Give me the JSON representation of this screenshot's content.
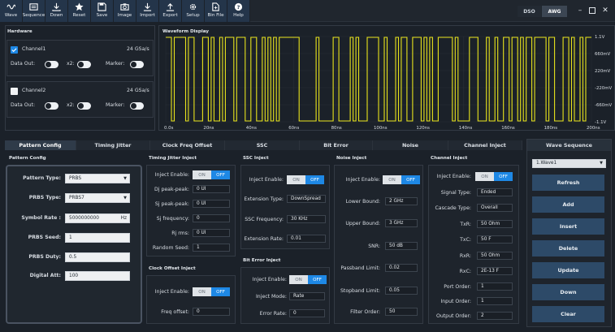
{
  "toolbar": {
    "buttons": [
      {
        "label": "Wave",
        "icon": "wave-icon"
      },
      {
        "label": "Sequence",
        "icon": "sequence-icon"
      },
      {
        "label": "Down",
        "icon": "download-icon"
      },
      {
        "label": "Reset",
        "icon": "star-icon"
      },
      {
        "label": "Save",
        "icon": "save-icon"
      },
      {
        "label": "Image",
        "icon": "camera-icon"
      },
      {
        "label": "Import",
        "icon": "import-icon"
      },
      {
        "label": "Export",
        "icon": "export-icon"
      },
      {
        "label": "Setup",
        "icon": "gear-icon"
      },
      {
        "label": "Bin File",
        "icon": "file-icon"
      },
      {
        "label": "Help",
        "icon": "help-icon"
      }
    ],
    "modes": {
      "dso": "DSO",
      "awg": "AWG"
    }
  },
  "hardware": {
    "title": "Hardware",
    "channel1": {
      "name": "Channel1",
      "rate": "24 GSa/s",
      "checked": true,
      "data_out": "Data Out:",
      "x2": "x2:",
      "marker": "Marker:"
    },
    "channel2": {
      "name": "Channel2",
      "rate": "24 GSa/s",
      "checked": false,
      "data_out": "Data Out:",
      "x2": "x2:",
      "marker": "Marker:"
    }
  },
  "waveform": {
    "title": "Waveform Display",
    "y_labels": [
      "1.1V",
      "660mV",
      "220mV",
      "-220mV",
      "-660mV",
      "-1.1V"
    ],
    "x_labels": [
      "0.0s",
      "20ns",
      "40ns",
      "60ns",
      "80ns",
      "100ns",
      "120ns",
      "140ns",
      "160ns",
      "180ns",
      "200ns"
    ],
    "color": "#e8e41c"
  },
  "tabs": [
    "Pattern Config",
    "Timing Jitter",
    "Clock Freq Offset",
    "SSC",
    "Bit Error",
    "Noise",
    "Channel Inject"
  ],
  "pattern_config": {
    "title": "Pattern Config",
    "pattern_type": {
      "label": "Pattern Type:",
      "value": "PRBS"
    },
    "prbs_type": {
      "label": "PRBS Type:",
      "value": "PRBS7"
    },
    "symbol_rate": {
      "label": "Symbol Rate :",
      "value": "5000000000",
      "unit": "Hz"
    },
    "prbs_seed": {
      "label": "PRBS Seed:",
      "value": "1"
    },
    "prbs_duty": {
      "label": "PRBS Duty:",
      "value": "0.5"
    },
    "digital_att": {
      "label": "Digital Att:",
      "value": "100"
    }
  },
  "timing_jitter": {
    "title": "Timing Jitter Inject",
    "inject_enable": "Inject Enable:",
    "on": "ON",
    "off": "OFF",
    "rows": [
      {
        "label": "Dj peak-peak:",
        "value": "0 UI"
      },
      {
        "label": "Sj peak-peak:",
        "value": "0 UI"
      },
      {
        "label": "Sj frequency:",
        "value": "0"
      },
      {
        "label": "Rj rms:",
        "value": "0 UI"
      },
      {
        "label": "Random Seed:",
        "value": "1"
      }
    ]
  },
  "clock_offset": {
    "title": "Clock Offset Inject",
    "inject_enable": "Inject Enable:",
    "on": "ON",
    "off": "OFF",
    "freq_label": "Freq offset:",
    "freq_value": "0"
  },
  "ssc": {
    "title": "SSC Inject",
    "inject_enable": "Inject Enable:",
    "on": "ON",
    "off": "OFF",
    "rows": [
      {
        "label": "Extension Type:",
        "value": "DownSpread"
      },
      {
        "label": "SSC Frequency:",
        "value": "30 KHz"
      },
      {
        "label": "Extension Rate:",
        "value": "0.01"
      }
    ]
  },
  "bit_error": {
    "title": "Bit Error Inject",
    "inject_enable": "Inject Enable:",
    "on": "ON",
    "off": "OFF",
    "rows": [
      {
        "label": "Inject Mode:",
        "value": "Rate"
      },
      {
        "label": "Error Rate:",
        "value": "0"
      }
    ]
  },
  "noise": {
    "title": "Noise Inject",
    "inject_enable": "Inject Enable:",
    "on": "ON",
    "off": "OFF",
    "rows": [
      {
        "label": "Lower Bound:",
        "value": "2 GHz"
      },
      {
        "label": "Upper Bound:",
        "value": "3 GHz"
      },
      {
        "label": "SNR:",
        "value": "50 dB"
      },
      {
        "label": "Passband Limit:",
        "value": "0.02"
      },
      {
        "label": "Stopband Limit:",
        "value": "0.05"
      },
      {
        "label": "Filter Order:",
        "value": "50"
      }
    ]
  },
  "channel_inject": {
    "title": "Channel Inject",
    "inject_enable": "Inject Enable:",
    "on": "ON",
    "off": "OFF",
    "rows": [
      {
        "label": "Signal Type:",
        "value": "Ended"
      },
      {
        "label": "Cascade Type:",
        "value": "Overall"
      },
      {
        "label": "TxR:",
        "value": "50 Ohm"
      },
      {
        "label": "TxC:",
        "value": "50 F"
      },
      {
        "label": "RxR:",
        "value": "50 Ohm"
      },
      {
        "label": "RxC:",
        "value": "2E-13 F"
      },
      {
        "label": "Port Order:",
        "value": "1"
      },
      {
        "label": "Input Order:",
        "value": "1"
      },
      {
        "label": "Output Order:",
        "value": "2"
      }
    ]
  },
  "wave_sequence": {
    "title": "Wave Sequence",
    "selected": "1.Wave1",
    "buttons": [
      "Refresh",
      "Add",
      "Insert",
      "Delete",
      "Update",
      "Down",
      "Clear"
    ]
  }
}
